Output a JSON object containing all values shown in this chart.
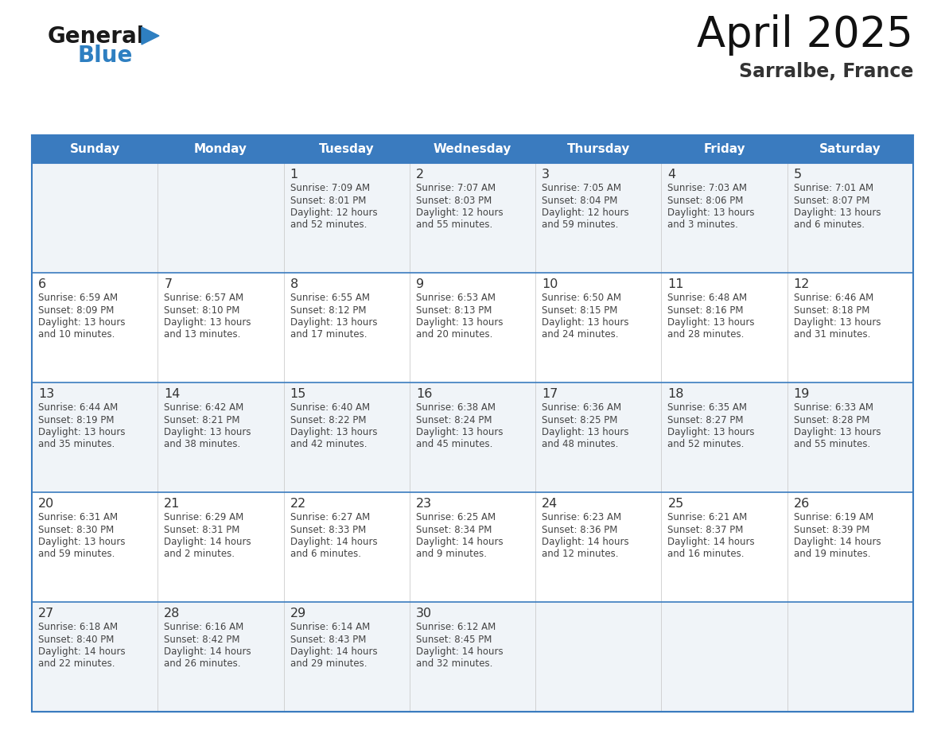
{
  "title": "April 2025",
  "subtitle": "Sarralbe, France",
  "header_bg": "#3a7bbf",
  "header_text": "#ffffff",
  "day_names": [
    "Sunday",
    "Monday",
    "Tuesday",
    "Wednesday",
    "Thursday",
    "Friday",
    "Saturday"
  ],
  "cell_bg_even": "#f0f4f8",
  "cell_bg_odd": "#ffffff",
  "border_color": "#3a7bbf",
  "text_color": "#444444",
  "number_color": "#333333",
  "days": [
    {
      "day": 1,
      "col": 2,
      "row": 0,
      "sunrise": "7:09 AM",
      "sunset": "8:01 PM",
      "daylight_h": "12 hours",
      "daylight_m": "and 52 minutes."
    },
    {
      "day": 2,
      "col": 3,
      "row": 0,
      "sunrise": "7:07 AM",
      "sunset": "8:03 PM",
      "daylight_h": "12 hours",
      "daylight_m": "and 55 minutes."
    },
    {
      "day": 3,
      "col": 4,
      "row": 0,
      "sunrise": "7:05 AM",
      "sunset": "8:04 PM",
      "daylight_h": "12 hours",
      "daylight_m": "and 59 minutes."
    },
    {
      "day": 4,
      "col": 5,
      "row": 0,
      "sunrise": "7:03 AM",
      "sunset": "8:06 PM",
      "daylight_h": "13 hours",
      "daylight_m": "and 3 minutes."
    },
    {
      "day": 5,
      "col": 6,
      "row": 0,
      "sunrise": "7:01 AM",
      "sunset": "8:07 PM",
      "daylight_h": "13 hours",
      "daylight_m": "and 6 minutes."
    },
    {
      "day": 6,
      "col": 0,
      "row": 1,
      "sunrise": "6:59 AM",
      "sunset": "8:09 PM",
      "daylight_h": "13 hours",
      "daylight_m": "and 10 minutes."
    },
    {
      "day": 7,
      "col": 1,
      "row": 1,
      "sunrise": "6:57 AM",
      "sunset": "8:10 PM",
      "daylight_h": "13 hours",
      "daylight_m": "and 13 minutes."
    },
    {
      "day": 8,
      "col": 2,
      "row": 1,
      "sunrise": "6:55 AM",
      "sunset": "8:12 PM",
      "daylight_h": "13 hours",
      "daylight_m": "and 17 minutes."
    },
    {
      "day": 9,
      "col": 3,
      "row": 1,
      "sunrise": "6:53 AM",
      "sunset": "8:13 PM",
      "daylight_h": "13 hours",
      "daylight_m": "and 20 minutes."
    },
    {
      "day": 10,
      "col": 4,
      "row": 1,
      "sunrise": "6:50 AM",
      "sunset": "8:15 PM",
      "daylight_h": "13 hours",
      "daylight_m": "and 24 minutes."
    },
    {
      "day": 11,
      "col": 5,
      "row": 1,
      "sunrise": "6:48 AM",
      "sunset": "8:16 PM",
      "daylight_h": "13 hours",
      "daylight_m": "and 28 minutes."
    },
    {
      "day": 12,
      "col": 6,
      "row": 1,
      "sunrise": "6:46 AM",
      "sunset": "8:18 PM",
      "daylight_h": "13 hours",
      "daylight_m": "and 31 minutes."
    },
    {
      "day": 13,
      "col": 0,
      "row": 2,
      "sunrise": "6:44 AM",
      "sunset": "8:19 PM",
      "daylight_h": "13 hours",
      "daylight_m": "and 35 minutes."
    },
    {
      "day": 14,
      "col": 1,
      "row": 2,
      "sunrise": "6:42 AM",
      "sunset": "8:21 PM",
      "daylight_h": "13 hours",
      "daylight_m": "and 38 minutes."
    },
    {
      "day": 15,
      "col": 2,
      "row": 2,
      "sunrise": "6:40 AM",
      "sunset": "8:22 PM",
      "daylight_h": "13 hours",
      "daylight_m": "and 42 minutes."
    },
    {
      "day": 16,
      "col": 3,
      "row": 2,
      "sunrise": "6:38 AM",
      "sunset": "8:24 PM",
      "daylight_h": "13 hours",
      "daylight_m": "and 45 minutes."
    },
    {
      "day": 17,
      "col": 4,
      "row": 2,
      "sunrise": "6:36 AM",
      "sunset": "8:25 PM",
      "daylight_h": "13 hours",
      "daylight_m": "and 48 minutes."
    },
    {
      "day": 18,
      "col": 5,
      "row": 2,
      "sunrise": "6:35 AM",
      "sunset": "8:27 PM",
      "daylight_h": "13 hours",
      "daylight_m": "and 52 minutes."
    },
    {
      "day": 19,
      "col": 6,
      "row": 2,
      "sunrise": "6:33 AM",
      "sunset": "8:28 PM",
      "daylight_h": "13 hours",
      "daylight_m": "and 55 minutes."
    },
    {
      "day": 20,
      "col": 0,
      "row": 3,
      "sunrise": "6:31 AM",
      "sunset": "8:30 PM",
      "daylight_h": "13 hours",
      "daylight_m": "and 59 minutes."
    },
    {
      "day": 21,
      "col": 1,
      "row": 3,
      "sunrise": "6:29 AM",
      "sunset": "8:31 PM",
      "daylight_h": "14 hours",
      "daylight_m": "and 2 minutes."
    },
    {
      "day": 22,
      "col": 2,
      "row": 3,
      "sunrise": "6:27 AM",
      "sunset": "8:33 PM",
      "daylight_h": "14 hours",
      "daylight_m": "and 6 minutes."
    },
    {
      "day": 23,
      "col": 3,
      "row": 3,
      "sunrise": "6:25 AM",
      "sunset": "8:34 PM",
      "daylight_h": "14 hours",
      "daylight_m": "and 9 minutes."
    },
    {
      "day": 24,
      "col": 4,
      "row": 3,
      "sunrise": "6:23 AM",
      "sunset": "8:36 PM",
      "daylight_h": "14 hours",
      "daylight_m": "and 12 minutes."
    },
    {
      "day": 25,
      "col": 5,
      "row": 3,
      "sunrise": "6:21 AM",
      "sunset": "8:37 PM",
      "daylight_h": "14 hours",
      "daylight_m": "and 16 minutes."
    },
    {
      "day": 26,
      "col": 6,
      "row": 3,
      "sunrise": "6:19 AM",
      "sunset": "8:39 PM",
      "daylight_h": "14 hours",
      "daylight_m": "and 19 minutes."
    },
    {
      "day": 27,
      "col": 0,
      "row": 4,
      "sunrise": "6:18 AM",
      "sunset": "8:40 PM",
      "daylight_h": "14 hours",
      "daylight_m": "and 22 minutes."
    },
    {
      "day": 28,
      "col": 1,
      "row": 4,
      "sunrise": "6:16 AM",
      "sunset": "8:42 PM",
      "daylight_h": "14 hours",
      "daylight_m": "and 26 minutes."
    },
    {
      "day": 29,
      "col": 2,
      "row": 4,
      "sunrise": "6:14 AM",
      "sunset": "8:43 PM",
      "daylight_h": "14 hours",
      "daylight_m": "and 29 minutes."
    },
    {
      "day": 30,
      "col": 3,
      "row": 4,
      "sunrise": "6:12 AM",
      "sunset": "8:45 PM",
      "daylight_h": "14 hours",
      "daylight_m": "and 32 minutes."
    }
  ]
}
